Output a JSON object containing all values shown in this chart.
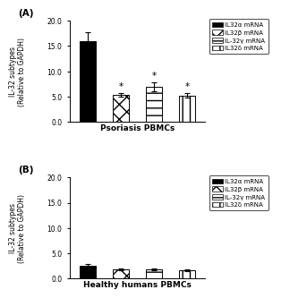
{
  "panel_A": {
    "title": "Psoriasis PBMCs",
    "values": [
      16.0,
      5.3,
      6.9,
      5.2
    ],
    "errors": [
      1.8,
      0.4,
      0.9,
      0.45
    ],
    "ylim": [
      0,
      20.0
    ],
    "yticks": [
      0.0,
      5.0,
      10.0,
      15.0,
      20.0
    ],
    "stars": [
      false,
      true,
      true,
      true
    ]
  },
  "panel_B": {
    "title": "Healthy humans PBMCs",
    "values": [
      2.6,
      1.85,
      1.85,
      1.65
    ],
    "errors": [
      0.35,
      0.2,
      0.2,
      0.18
    ],
    "ylim": [
      0,
      20.0
    ],
    "yticks": [
      0.0,
      5.0,
      10.0,
      15.0,
      20.0
    ],
    "stars": [
      false,
      false,
      false,
      false
    ]
  },
  "legend_labels": [
    "IL32α mRNA",
    "IL32β mRNA",
    "IL-32γ mRNA",
    "IL32δ mRNA"
  ],
  "ylabel": "IL-32 subtypes\n(Relative to GAPDH)",
  "bar_width": 0.5,
  "label_A": "(A)",
  "label_B": "(B)"
}
